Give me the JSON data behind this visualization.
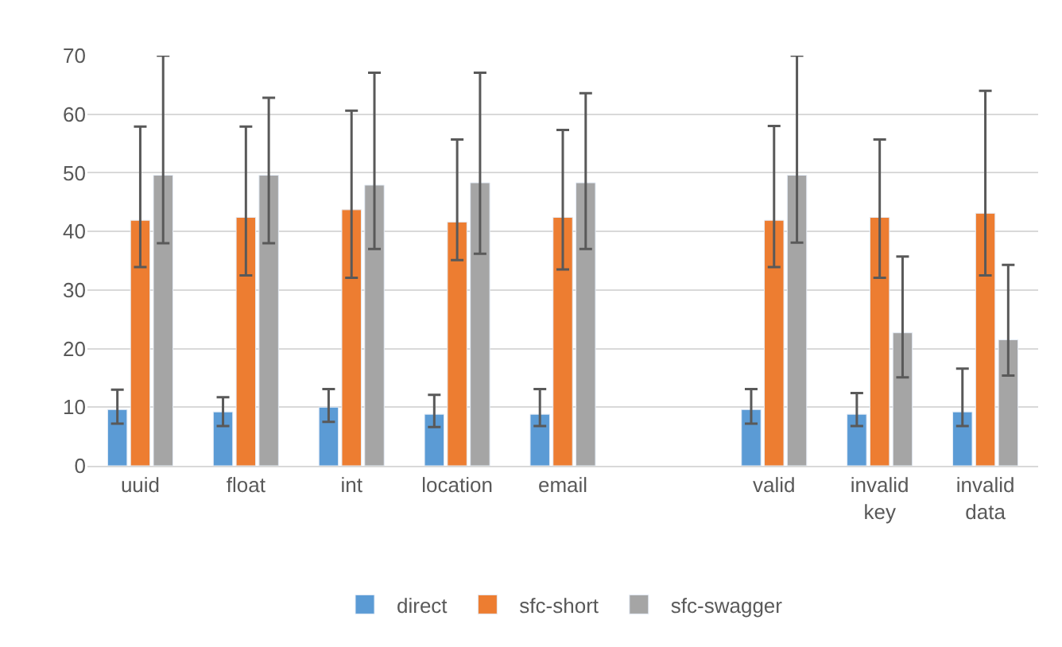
{
  "chart_data": {
    "type": "bar",
    "categories": [
      "uuid",
      "float",
      "int",
      "location",
      "email",
      null,
      "valid",
      "invalid\nkey",
      "invalid\ndata"
    ],
    "series": [
      {
        "name": "direct",
        "color": "#5b9bd5",
        "values": [
          9.6,
          9.2,
          10.0,
          8.8,
          8.8,
          null,
          9.6,
          8.8,
          9.2
        ],
        "errors": [
          [
            7.2,
            13.0
          ],
          [
            6.8,
            11.7
          ],
          [
            7.5,
            13.1
          ],
          [
            6.6,
            12.1
          ],
          [
            6.8,
            13.1
          ],
          null,
          [
            7.2,
            13.1
          ],
          [
            6.8,
            12.4
          ],
          [
            6.8,
            16.6
          ]
        ]
      },
      {
        "name": "sfc-short",
        "color": "#ed7d31",
        "values": [
          41.9,
          42.4,
          43.7,
          41.6,
          42.4,
          null,
          41.9,
          42.4,
          43.1
        ],
        "errors": [
          [
            33.9,
            57.9
          ],
          [
            32.5,
            57.9
          ],
          [
            32.1,
            60.6
          ],
          [
            35.1,
            55.7
          ],
          [
            33.5,
            57.3
          ],
          null,
          [
            33.9,
            58.0
          ],
          [
            32.1,
            55.7
          ],
          [
            32.5,
            64.0
          ]
        ]
      },
      {
        "name": "sfc-swagger",
        "color": "#a5a5a5",
        "values": [
          49.6,
          49.6,
          47.9,
          48.3,
          48.3,
          null,
          49.6,
          22.7,
          21.5
        ],
        "errors": [
          [
            38.0,
            70.0
          ],
          [
            38.0,
            62.8
          ],
          [
            37.0,
            67.1
          ],
          [
            36.2,
            67.1
          ],
          [
            37.0,
            63.6
          ],
          null,
          [
            38.1,
            70.0
          ],
          [
            15.1,
            35.7
          ],
          [
            15.4,
            34.3
          ]
        ]
      }
    ],
    "ylim": [
      0,
      70
    ],
    "yticks": [
      0,
      10,
      20,
      30,
      40,
      50,
      60,
      70
    ],
    "grid": "y",
    "legend": "bottom"
  }
}
